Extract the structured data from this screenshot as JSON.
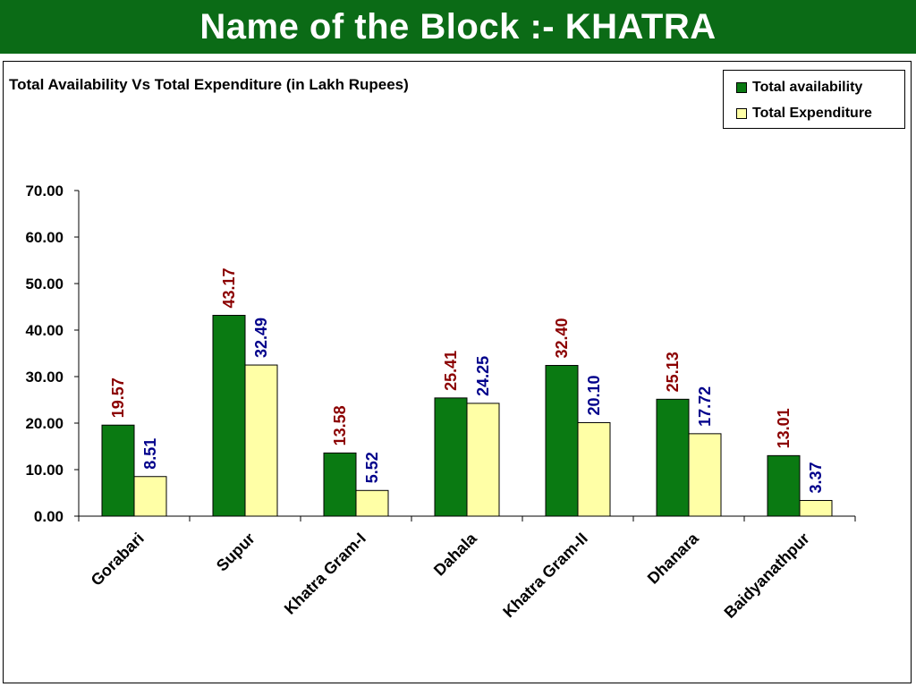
{
  "header": {
    "title": "Name of the Block :- KHATRA",
    "background_color": "#0b6b16"
  },
  "chart_data": {
    "type": "bar",
    "title": "Total Availability Vs Total Expenditure (in Lakh Rupees)",
    "xlabel": "",
    "ylabel": "",
    "ylim": [
      0,
      70
    ],
    "y_ticks": [
      "0.00",
      "10.00",
      "20.00",
      "30.00",
      "40.00",
      "50.00",
      "60.00",
      "70.00"
    ],
    "grid": false,
    "legend_position": "top-right",
    "categories": [
      "Gorabari",
      "Supur",
      "Khatra Gram-I",
      "Dahala",
      "Khatra Gram-II",
      "Dhanara",
      "Baidyanathpur"
    ],
    "series": [
      {
        "name": "Total availability",
        "color": "#0a7a12",
        "label_color": "#8b0000",
        "values": [
          19.57,
          43.17,
          13.58,
          25.41,
          32.4,
          25.13,
          13.01
        ],
        "labels": [
          "19.57",
          "43.17",
          "13.58",
          "25.41",
          "32.40",
          "25.13",
          "13.01"
        ]
      },
      {
        "name": "Total Expenditure",
        "color": "#ffffa6",
        "label_color": "#00008b",
        "values": [
          8.51,
          32.49,
          5.52,
          24.25,
          20.1,
          17.72,
          3.37
        ],
        "labels": [
          "8.51",
          "32.49",
          "5.52",
          "24.25",
          "20.10",
          "17.72",
          "3.37"
        ]
      }
    ]
  }
}
